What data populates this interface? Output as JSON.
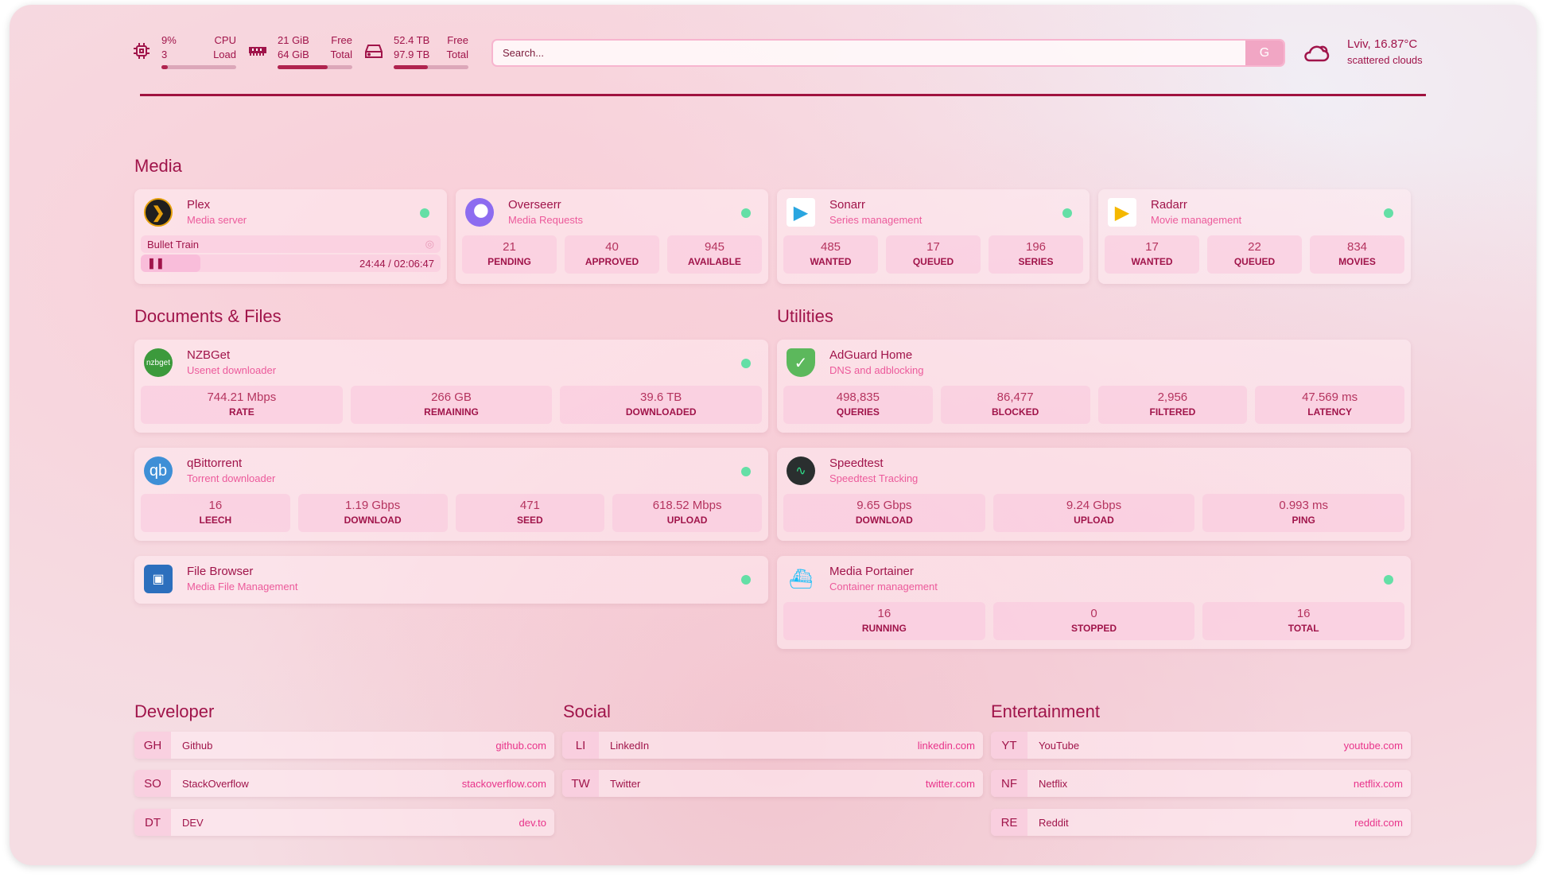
{
  "resources": {
    "cpu": {
      "value": "9%",
      "sub": "3",
      "label1": "CPU",
      "label2": "Load",
      "percent": 9
    },
    "memory": {
      "value": "21 GiB",
      "sub": "64 GiB",
      "label1": "Free",
      "label2": "Total",
      "percent": 67
    },
    "disk": {
      "value": "52.4 TB",
      "sub": "97.9 TB",
      "label1": "Free",
      "label2": "Total",
      "percent": 46
    }
  },
  "search": {
    "placeholder": "Search...",
    "engine_label": "G"
  },
  "weather": {
    "location": "Lviv, 16.87°C",
    "condition": "scattered clouds"
  },
  "colors": {
    "accent": "#a0144a",
    "subtitle": "#ec5a9b",
    "status_ok": "#64dfa6"
  },
  "media": {
    "title": "Media",
    "plex": {
      "name": "Plex",
      "desc": "Media server",
      "now_playing": "Bullet Train",
      "time": "24:44 / 02:06:47",
      "progress_percent": 20
    },
    "overseerr": {
      "name": "Overseerr",
      "desc": "Media Requests",
      "stats": [
        {
          "v": "21",
          "l": "PENDING"
        },
        {
          "v": "40",
          "l": "APPROVED"
        },
        {
          "v": "945",
          "l": "AVAILABLE"
        }
      ]
    },
    "sonarr": {
      "name": "Sonarr",
      "desc": "Series management",
      "stats": [
        {
          "v": "485",
          "l": "WANTED"
        },
        {
          "v": "17",
          "l": "QUEUED"
        },
        {
          "v": "196",
          "l": "SERIES"
        }
      ]
    },
    "radarr": {
      "name": "Radarr",
      "desc": "Movie management",
      "stats": [
        {
          "v": "17",
          "l": "WANTED"
        },
        {
          "v": "22",
          "l": "QUEUED"
        },
        {
          "v": "834",
          "l": "MOVIES"
        }
      ]
    }
  },
  "documents": {
    "title": "Documents & Files",
    "nzbget": {
      "name": "NZBGet",
      "desc": "Usenet downloader",
      "logo": "nzbget",
      "stats": [
        {
          "v": "744.21 Mbps",
          "l": "RATE"
        },
        {
          "v": "266 GB",
          "l": "REMAINING"
        },
        {
          "v": "39.6 TB",
          "l": "DOWNLOADED"
        }
      ]
    },
    "qbit": {
      "name": "qBittorrent",
      "desc": "Torrent downloader",
      "logo": "qb",
      "stats": [
        {
          "v": "16",
          "l": "LEECH"
        },
        {
          "v": "1.19 Gbps",
          "l": "DOWNLOAD"
        },
        {
          "v": "471",
          "l": "SEED"
        },
        {
          "v": "618.52 Mbps",
          "l": "UPLOAD"
        }
      ]
    },
    "filebrowser": {
      "name": "File Browser",
      "desc": "Media File Management"
    }
  },
  "utilities": {
    "title": "Utilities",
    "adguard": {
      "name": "AdGuard Home",
      "desc": "DNS and adblocking",
      "stats": [
        {
          "v": "498,835",
          "l": "QUERIES"
        },
        {
          "v": "86,477",
          "l": "BLOCKED"
        },
        {
          "v": "2,956",
          "l": "FILTERED"
        },
        {
          "v": "47.569 ms",
          "l": "LATENCY"
        }
      ]
    },
    "speedtest": {
      "name": "Speedtest",
      "desc": "Speedtest Tracking",
      "stats": [
        {
          "v": "9.65 Gbps",
          "l": "DOWNLOAD"
        },
        {
          "v": "9.24 Gbps",
          "l": "UPLOAD"
        },
        {
          "v": "0.993 ms",
          "l": "PING"
        }
      ]
    },
    "portainer": {
      "name": "Media Portainer",
      "desc": "Container management",
      "stats": [
        {
          "v": "16",
          "l": "RUNNING"
        },
        {
          "v": "0",
          "l": "STOPPED"
        },
        {
          "v": "16",
          "l": "TOTAL"
        }
      ]
    }
  },
  "bookmarks": [
    {
      "title": "Developer",
      "items": [
        {
          "abbr": "GH",
          "name": "Github",
          "url": "github.com"
        },
        {
          "abbr": "SO",
          "name": "StackOverflow",
          "url": "stackoverflow.com"
        },
        {
          "abbr": "DT",
          "name": "DEV",
          "url": "dev.to"
        }
      ]
    },
    {
      "title": "Social",
      "items": [
        {
          "abbr": "LI",
          "name": "LinkedIn",
          "url": "linkedin.com"
        },
        {
          "abbr": "TW",
          "name": "Twitter",
          "url": "twitter.com"
        }
      ]
    },
    {
      "title": "Entertainment",
      "items": [
        {
          "abbr": "YT",
          "name": "YouTube",
          "url": "youtube.com"
        },
        {
          "abbr": "NF",
          "name": "Netflix",
          "url": "netflix.com"
        },
        {
          "abbr": "RE",
          "name": "Reddit",
          "url": "reddit.com"
        }
      ]
    }
  ]
}
